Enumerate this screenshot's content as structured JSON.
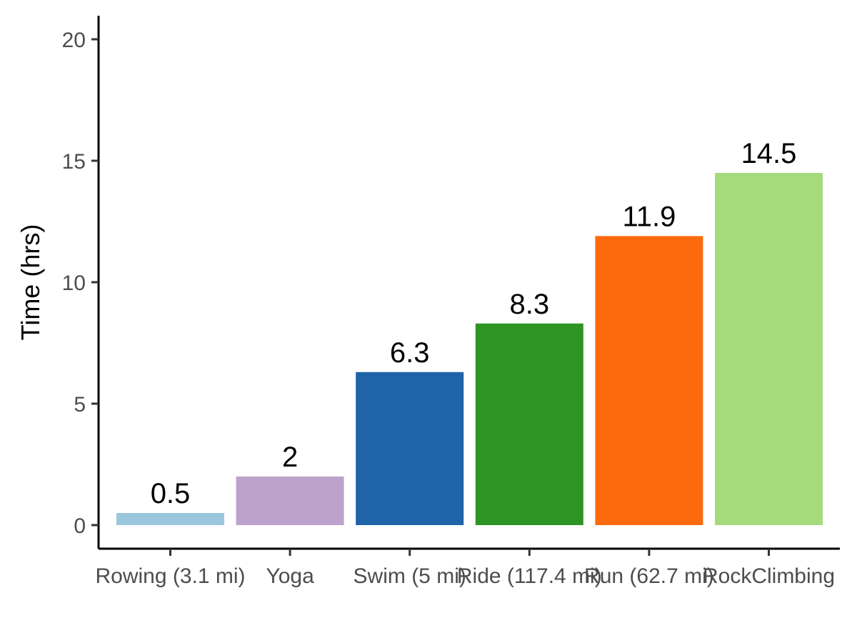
{
  "chart_data": {
    "type": "bar",
    "title": "",
    "xlabel": "",
    "ylabel": "Time (hrs)",
    "ylim": [
      -1,
      21
    ],
    "yticks": [
      0,
      5,
      10,
      15,
      20
    ],
    "grid": false,
    "categories": [
      "Rowing (3.1 mi)",
      "Yoga",
      "Swim (5 mi)",
      "Ride (117.4 mi)",
      "Run (62.7 mi)",
      "RockClimbing"
    ],
    "values": [
      0.5,
      2,
      6.3,
      8.3,
      11.9,
      14.5
    ],
    "value_labels": [
      "0.5",
      "2",
      "6.3",
      "8.3",
      "11.9",
      "14.5"
    ],
    "colors": [
      "#9ac6de",
      "#bca2cc",
      "#1f63a8",
      "#2e9424",
      "#fc6a0d",
      "#a5db7b"
    ]
  }
}
